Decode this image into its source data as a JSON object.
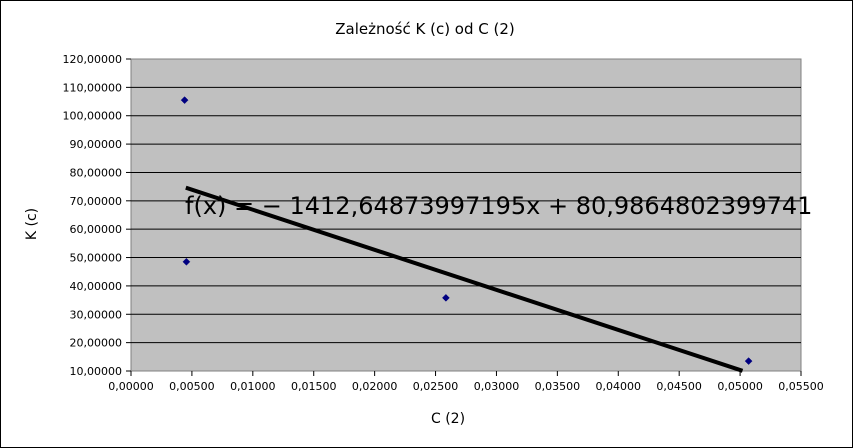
{
  "chart_data": {
    "type": "scatter",
    "title": "Zależność K (c) od C (2)",
    "xlabel": "C (2)",
    "ylabel": "K (c)",
    "xlim": [
      0,
      0.055
    ],
    "ylim": [
      10,
      120
    ],
    "x_ticks": [
      "0,00000",
      "0,00500",
      "0,01000",
      "0,01500",
      "0,02000",
      "0,02500",
      "0,03000",
      "0,03500",
      "0,04000",
      "0,04500",
      "0,05000",
      "0,05500"
    ],
    "y_ticks": [
      "10,00000",
      "20,00000",
      "30,00000",
      "40,00000",
      "50,00000",
      "60,00000",
      "70,00000",
      "80,00000",
      "90,00000",
      "100,00000",
      "110,00000",
      "120,00000"
    ],
    "grid": "horizontal",
    "plot_background": "#c0c0c0",
    "series": [
      {
        "color": "#000080",
        "marker": "diamond",
        "points": [
          {
            "x": 0.0044,
            "y": 105.5
          },
          {
            "x": 0.00455,
            "y": 48.5
          },
          {
            "x": 0.02585,
            "y": 35.8
          },
          {
            "x": 0.0507,
            "y": 13.5
          }
        ]
      }
    ],
    "trendline": {
      "slope": -1412.64873997195,
      "intercept": 80.9864802399741,
      "x_range": [
        0.0045,
        0.0502
      ],
      "color": "#000000",
      "label": "f(x) = − 1412,64873997195x + 80,9864802399741"
    }
  }
}
